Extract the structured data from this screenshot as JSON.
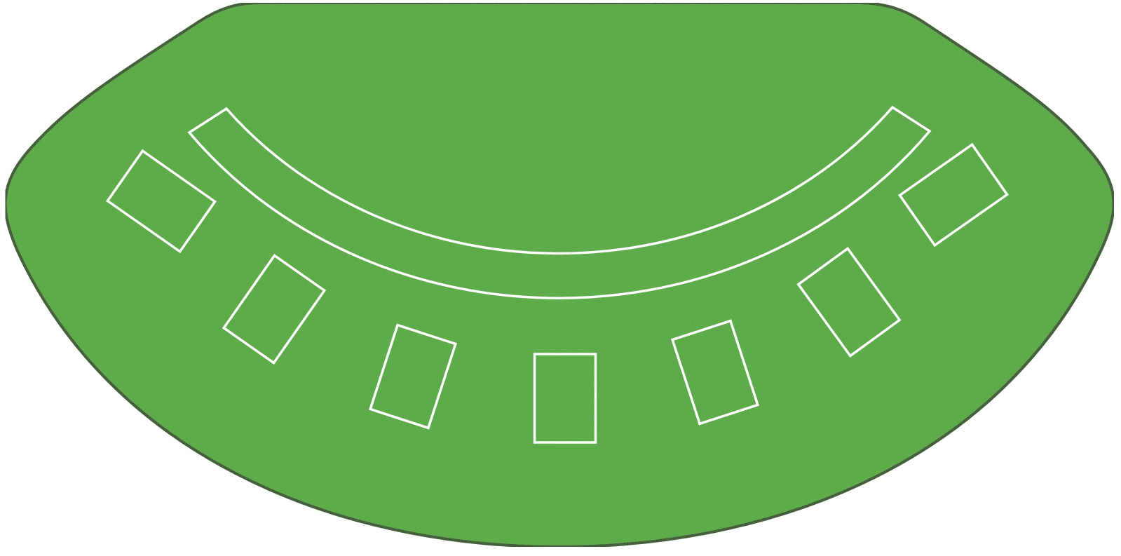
{
  "table": {
    "game": "blackjack",
    "felt_color": "#4ea337",
    "felt_highlight": "#56ad3e",
    "border_color": "#1b1b1b",
    "line_color": "#ffffff",
    "background": "#ffffff"
  },
  "betting_spots": [
    {
      "id": 1,
      "label": ""
    },
    {
      "id": 2,
      "label": ""
    },
    {
      "id": 3,
      "label": ""
    },
    {
      "id": 4,
      "label": ""
    },
    {
      "id": 5,
      "label": ""
    },
    {
      "id": 6,
      "label": ""
    },
    {
      "id": 7,
      "label": ""
    }
  ],
  "insurance_arc": {
    "label": ""
  }
}
